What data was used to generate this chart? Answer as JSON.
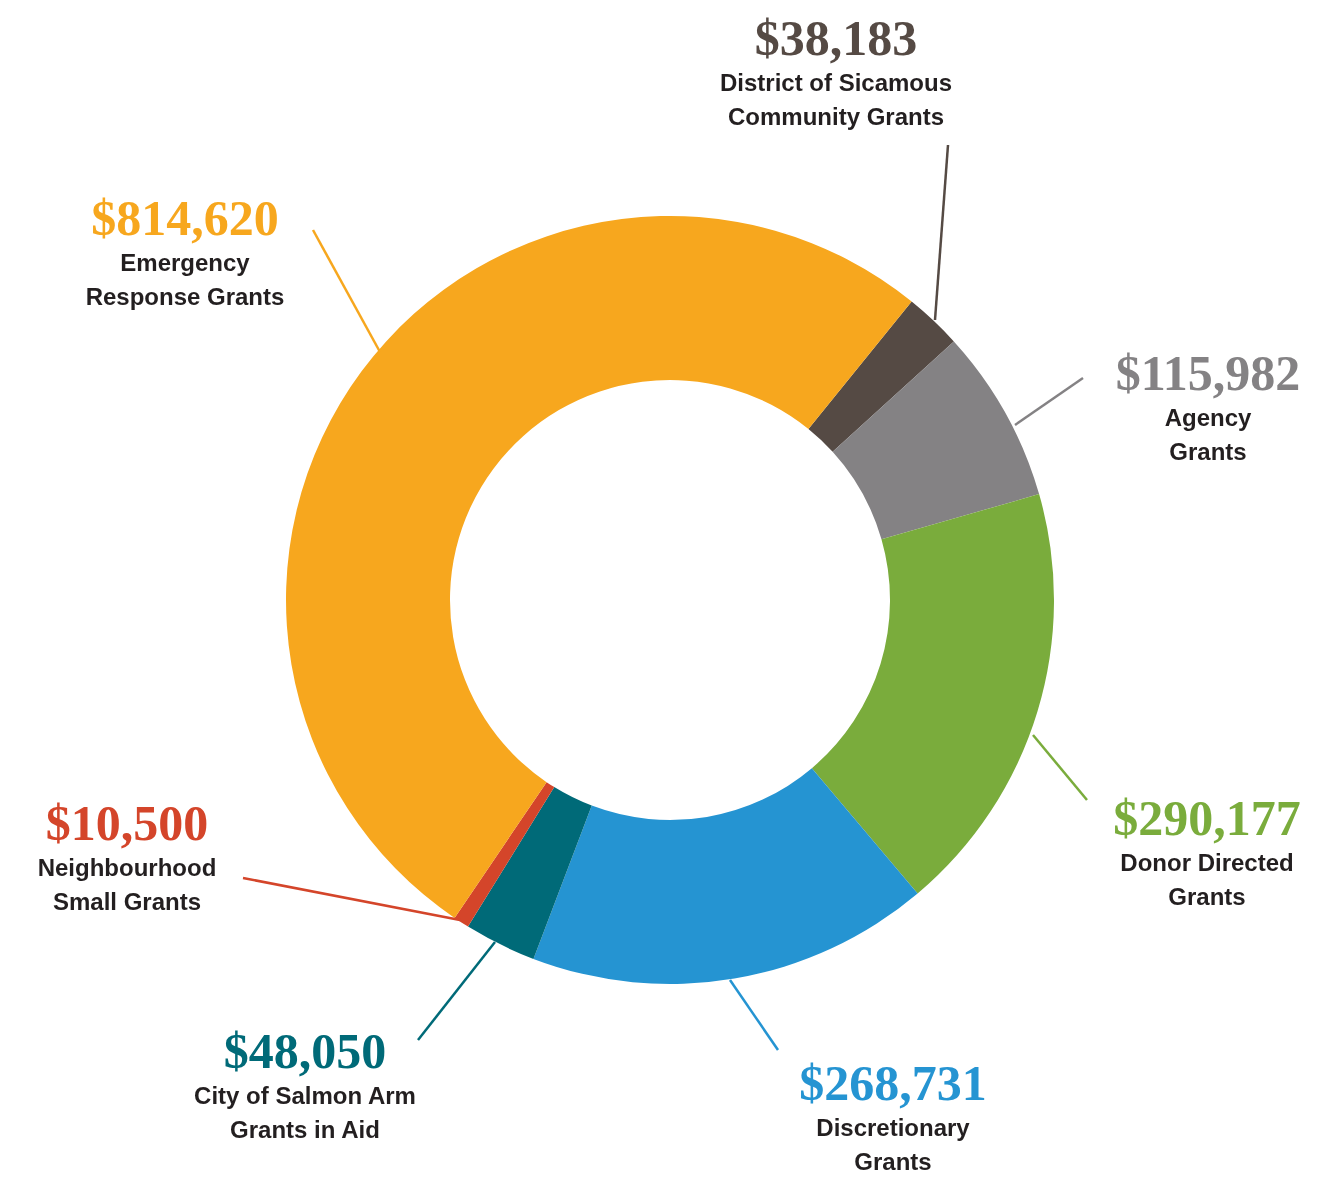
{
  "chart_data": {
    "type": "donut",
    "categories": [
      "District of Sicamous Community Grants",
      "Agency Grants",
      "Donor Directed Grants",
      "Discretionary Grants",
      "City of Salmon Arm Grants in Aid",
      "Neighbourhood Small Grants",
      "Emergency Response Grants"
    ],
    "values": [
      38183,
      115982,
      290177,
      268731,
      48050,
      10500,
      814620
    ],
    "value_labels": [
      "$38,183",
      "$115,982",
      "$290,177",
      "$268,731",
      "$48,050",
      "$10,500",
      "$814,620"
    ],
    "colors": [
      "#554a44",
      "#848284",
      "#7aac3c",
      "#2594d2",
      "#006a78",
      "#d4452a",
      "#f7a71e"
    ]
  }
}
